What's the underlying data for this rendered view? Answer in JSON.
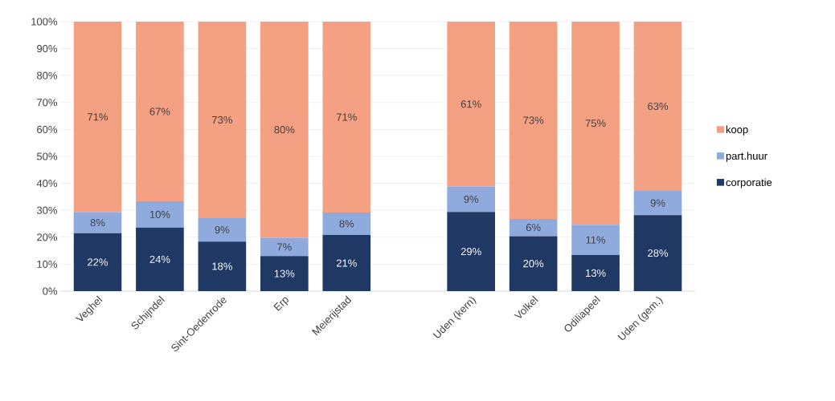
{
  "chart_data": {
    "type": "bar",
    "stacked": true,
    "categories": [
      "Veghel",
      "Schijndel",
      "Sint-Oedenrode",
      "Erp",
      "Meierijstad",
      null,
      "Uden (kern)",
      "Volkel",
      "Odiliapeel",
      "Uden (gem.)"
    ],
    "series": [
      {
        "name": "corporatie",
        "color": "#203864",
        "values": [
          21.5,
          23.6,
          18.4,
          13.0,
          20.8,
          null,
          29.4,
          20.4,
          13.4,
          28.2
        ],
        "value_labels": [
          "22%",
          "24%",
          "18%",
          "13%",
          "21%",
          null,
          "29%",
          "20%",
          "13%",
          "28%"
        ]
      },
      {
        "name": "part.huur",
        "color": "#8faadc",
        "values": [
          7.8,
          9.7,
          8.7,
          6.8,
          8.4,
          null,
          9.4,
          6.4,
          11.2,
          9.0
        ],
        "value_labels": [
          "8%",
          "10%",
          "9%",
          "7%",
          "8%",
          null,
          "9%",
          "6%",
          "11%",
          "9%"
        ]
      },
      {
        "name": "koop",
        "color": "#f4a083",
        "values": [
          70.7,
          66.7,
          72.9,
          80.2,
          70.8,
          null,
          61.2,
          73.2,
          75.4,
          62.8
        ],
        "value_labels": [
          "71%",
          "67%",
          "73%",
          "80%",
          "71%",
          null,
          "61%",
          "73%",
          "75%",
          "63%"
        ]
      }
    ],
    "ylim": [
      0,
      100
    ],
    "yticks": [
      {
        "value": 0,
        "label": "0%"
      },
      {
        "value": 10,
        "label": "10%"
      },
      {
        "value": 20,
        "label": "20%"
      },
      {
        "value": 30,
        "label": "30%"
      },
      {
        "value": 40,
        "label": "40%"
      },
      {
        "value": 50,
        "label": "50%"
      },
      {
        "value": 60,
        "label": "60%"
      },
      {
        "value": 70,
        "label": "70%"
      },
      {
        "value": 80,
        "label": "80%"
      },
      {
        "value": 90,
        "label": "90%"
      },
      {
        "value": 100,
        "label": "100%"
      }
    ],
    "grid": "y",
    "legend": "right"
  }
}
